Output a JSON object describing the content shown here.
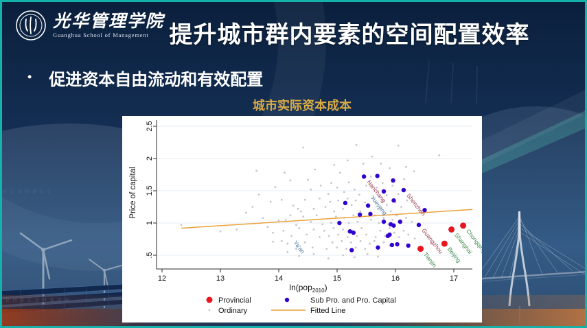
{
  "header": {
    "logo_cn": "光华管理学院",
    "logo_en": "Guanghua School of Management",
    "title": "提升城市群内要素的空间配置效率"
  },
  "bullet": {
    "marker": "•",
    "text": "促进资本自由流动和有效配置"
  },
  "chart_title": "城市实际资本成本",
  "colors": {
    "slide_border_teal": "#14b2aa",
    "slide_background": "#0c2444",
    "title_gold": "#d9ab45",
    "provincial_red": "#e8151f",
    "subpro_blue": "#3203cf",
    "ordinary_gray": "#c6c6c6",
    "fitted_orange": "#e9a23b",
    "label_maroon": "#9c3a4e",
    "label_steelblue": "#46749e",
    "label_green": "#3e8c4a"
  },
  "chart_data": {
    "type": "scatter",
    "title": "城市实际资本成本",
    "xlabel_parts": [
      "ln(pop",
      "2010",
      ")"
    ],
    "ylabel": "Price of capital",
    "xlim": [
      11.9,
      17.35
    ],
    "ylim": [
      0.3,
      2.6
    ],
    "grid": true,
    "legend_position": "bottom",
    "xticks": [
      12,
      13,
      14,
      15,
      16,
      17
    ],
    "yticks": [
      {
        "label": ".5",
        "value": 0.5
      },
      {
        "label": "1",
        "value": 1
      },
      {
        "label": "1.5",
        "value": 1.5
      },
      {
        "label": "2",
        "value": 2
      },
      {
        "label": "2.5",
        "value": 2.5
      }
    ],
    "series": [
      {
        "name": "Provincial",
        "type": "scatter",
        "color": "#e8151f",
        "marker_r": 4.5,
        "points": [
          [
            16.43,
            0.6
          ],
          [
            16.84,
            0.68
          ],
          [
            16.96,
            0.9
          ],
          [
            17.16,
            0.96
          ]
        ]
      },
      {
        "name": "Sub Pro. and Pro. Capital",
        "type": "scatter",
        "color": "#3203cf",
        "marker_r": 3.2,
        "points": [
          [
            15.46,
            1.72
          ],
          [
            15.69,
            1.73
          ],
          [
            15.96,
            1.66
          ],
          [
            15.8,
            1.49
          ],
          [
            16.14,
            1.51
          ],
          [
            15.97,
            1.35
          ],
          [
            15.14,
            1.31
          ],
          [
            15.53,
            1.27
          ],
          [
            15.39,
            1.13
          ],
          [
            15.57,
            1.14
          ],
          [
            15.8,
            1.02
          ],
          [
            15.92,
            0.98
          ],
          [
            16.08,
            1.02
          ],
          [
            16.5,
            1.2
          ],
          [
            16.4,
            0.97
          ],
          [
            15.97,
            0.96
          ],
          [
            15.9,
            0.82
          ],
          [
            16.03,
            0.67
          ],
          [
            16.22,
            0.65
          ],
          [
            15.94,
            0.66
          ],
          [
            15.28,
            0.85
          ],
          [
            15.87,
            0.8
          ],
          [
            15.25,
            0.58
          ],
          [
            15.7,
            0.62
          ],
          [
            15.04,
            1.0
          ],
          [
            15.22,
            0.87
          ]
        ]
      },
      {
        "name": "Ordinary",
        "type": "scatter",
        "color": "#c6c6c6",
        "marker_r": 1.4,
        "points": [
          [
            12.33,
            0.97
          ],
          [
            13.0,
            0.87
          ],
          [
            13.28,
            0.9
          ],
          [
            13.44,
            1.16
          ],
          [
            13.62,
            1.81
          ],
          [
            13.55,
            1.25
          ],
          [
            13.66,
            1.44
          ],
          [
            13.73,
            1.08
          ],
          [
            13.81,
            0.94
          ],
          [
            13.86,
            1.33
          ],
          [
            13.9,
            0.71
          ],
          [
            13.94,
            1.56
          ],
          [
            14.0,
            1.04
          ],
          [
            14.1,
            1.78
          ],
          [
            14.2,
            1.66
          ],
          [
            14.42,
            2.17
          ],
          [
            14.5,
            1.67
          ],
          [
            14.33,
            1.22
          ],
          [
            13.9,
            0.85
          ],
          [
            14.05,
            0.72
          ],
          [
            14.15,
            0.55
          ],
          [
            14.12,
            1.05
          ],
          [
            14.05,
            1.36
          ],
          [
            14.08,
            0.88
          ],
          [
            14.15,
            0.68
          ],
          [
            14.2,
            1.12
          ],
          [
            14.22,
            0.8
          ],
          [
            14.25,
            1.27
          ],
          [
            14.3,
            0.97
          ],
          [
            14.3,
            0.6
          ],
          [
            14.35,
            0.49
          ],
          [
            14.35,
            0.92
          ],
          [
            14.38,
            1.18
          ],
          [
            14.42,
            1.1
          ],
          [
            14.45,
            1.36
          ],
          [
            14.45,
            0.7
          ],
          [
            14.48,
            0.82
          ],
          [
            14.55,
            1.52
          ],
          [
            14.55,
            1.02
          ],
          [
            14.58,
            0.62
          ],
          [
            14.6,
            1.22
          ],
          [
            14.6,
            0.9
          ],
          [
            14.6,
            0.52
          ],
          [
            14.62,
            1.83
          ],
          [
            14.65,
            1.12
          ],
          [
            14.7,
            1.38
          ],
          [
            14.7,
            0.78
          ],
          [
            14.72,
            1.58
          ],
          [
            14.75,
            0.98
          ],
          [
            14.78,
            0.88
          ],
          [
            14.8,
            1.25
          ],
          [
            14.82,
            0.6
          ],
          [
            14.85,
            1.45
          ],
          [
            14.85,
            0.45
          ],
          [
            14.86,
            0.8
          ],
          [
            14.88,
            1.33
          ],
          [
            14.9,
            1.62
          ],
          [
            14.9,
            1.0
          ],
          [
            14.92,
            0.7
          ],
          [
            14.94,
            0.92
          ],
          [
            14.95,
            1.9
          ],
          [
            14.95,
            1.18
          ],
          [
            14.98,
            1.1
          ],
          [
            15.0,
            1.55
          ],
          [
            15.0,
            0.62
          ],
          [
            15.02,
            1.35
          ],
          [
            15.02,
            0.82
          ],
          [
            15.05,
            1.78
          ],
          [
            15.05,
            0.98
          ],
          [
            15.08,
            0.72
          ],
          [
            15.1,
            1.22
          ],
          [
            15.1,
            0.9
          ],
          [
            15.1,
            0.5
          ],
          [
            15.12,
            1.48
          ],
          [
            15.12,
            1.08
          ],
          [
            15.16,
            0.6
          ],
          [
            15.18,
            1.97
          ],
          [
            15.18,
            1.38
          ],
          [
            15.18,
            0.78
          ],
          [
            15.2,
            1.63
          ],
          [
            15.2,
            1.0
          ],
          [
            15.24,
            0.7
          ],
          [
            15.25,
            1.28
          ],
          [
            15.26,
            0.88
          ],
          [
            15.28,
            1.12
          ],
          [
            15.3,
            1.52
          ],
          [
            15.3,
            0.47
          ],
          [
            15.32,
            1.35
          ],
          [
            15.32,
            0.62
          ],
          [
            15.33,
            2.21
          ],
          [
            15.34,
            0.8
          ],
          [
            15.35,
            1.02
          ],
          [
            15.38,
            1.44
          ],
          [
            15.4,
            1.18
          ],
          [
            15.4,
            0.72
          ],
          [
            15.42,
            1.1
          ],
          [
            15.42,
            0.92
          ],
          [
            15.45,
            1.92
          ],
          [
            15.48,
            1.32
          ],
          [
            15.48,
            0.6
          ],
          [
            15.5,
            1.58
          ],
          [
            15.5,
            0.82
          ],
          [
            15.52,
            0.52
          ],
          [
            15.55,
            1.25
          ],
          [
            15.56,
            0.68
          ],
          [
            15.58,
            1.72
          ],
          [
            15.58,
            1.05
          ],
          [
            15.6,
            2.03
          ],
          [
            15.62,
            1.38
          ],
          [
            15.64,
            0.72
          ],
          [
            15.65,
            1.12
          ],
          [
            15.66,
            0.78
          ],
          [
            15.68,
            1.55
          ],
          [
            15.7,
            1.22
          ],
          [
            15.7,
            0.48
          ],
          [
            15.72,
            1.0
          ],
          [
            15.72,
            0.62
          ],
          [
            15.74,
            0.88
          ],
          [
            15.75,
            1.92
          ],
          [
            15.78,
            1.62
          ],
          [
            15.78,
            1.35
          ],
          [
            15.8,
            1.08
          ],
          [
            15.8,
            0.7
          ],
          [
            15.82,
            0.8
          ],
          [
            15.85,
            1.43
          ],
          [
            15.85,
            1.28
          ],
          [
            15.88,
            0.98
          ],
          [
            15.9,
            1.85
          ],
          [
            15.9,
            0.92
          ],
          [
            15.9,
            0.65
          ],
          [
            15.92,
            1.18
          ],
          [
            15.95,
            1.58
          ],
          [
            15.95,
            1.05
          ],
          [
            15.98,
            0.85
          ],
          [
            16.0,
            1.32
          ],
          [
            16.02,
            1.12
          ],
          [
            16.05,
            2.2
          ],
          [
            16.05,
            1.45
          ],
          [
            16.06,
            0.78
          ],
          [
            16.1,
            1.25
          ],
          [
            16.1,
            1.0
          ],
          [
            16.14,
            0.88
          ],
          [
            16.15,
            1.68
          ],
          [
            16.18,
            1.87
          ],
          [
            16.18,
            1.08
          ],
          [
            16.2,
            1.35
          ],
          [
            16.22,
            0.82
          ],
          [
            16.28,
            1.02
          ],
          [
            16.32,
            1.8
          ],
          [
            16.33,
            0.76
          ],
          [
            16.75,
            2.05
          ]
        ]
      },
      {
        "name": "Fitted Line",
        "type": "line",
        "color": "#e9a23b",
        "points": [
          [
            12.33,
            0.92
          ],
          [
            17.32,
            1.21
          ]
        ]
      }
    ],
    "city_labels": [
      {
        "text": "Nanchang",
        "x": 15.46,
        "y": 1.72,
        "color": "#9c3a4e"
      },
      {
        "text": "Yueyang",
        "x": 15.52,
        "y": 1.48,
        "color": "#46749e"
      },
      {
        "text": "Shenzhen",
        "x": 16.14,
        "y": 1.51,
        "color": "#9c3a4e"
      },
      {
        "text": "Ya'an",
        "x": 14.2,
        "y": 0.78,
        "color": "#46749e"
      },
      {
        "text": "Guangzhou",
        "x": 16.4,
        "y": 0.97,
        "color": "#9c3a4e"
      },
      {
        "text": "Tianjin",
        "x": 16.43,
        "y": 0.6,
        "color": "#3e8c4a"
      },
      {
        "text": "Beijing",
        "x": 16.84,
        "y": 0.68,
        "color": "#3e8c4a"
      },
      {
        "text": "Shanghai",
        "x": 16.96,
        "y": 0.9,
        "color": "#3e8c4a"
      },
      {
        "text": "Chongqing",
        "x": 17.16,
        "y": 0.96,
        "color": "#3e8c4a"
      }
    ]
  }
}
